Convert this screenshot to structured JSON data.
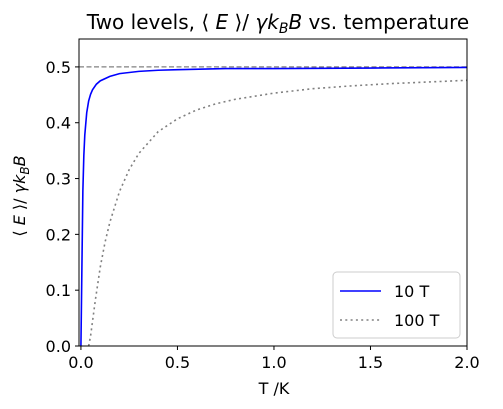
{
  "chart_data": {
    "type": "line",
    "title": "Two levels, ⟨ E ⟩/ γk_B B vs. temperature",
    "xlabel": "T /K",
    "ylabel": "⟨ E ⟩/ γk_B B",
    "xlim": [
      -0.01,
      2.0
    ],
    "ylim": [
      0.0,
      0.55
    ],
    "x_ticks": [
      0.0,
      0.5,
      1.0,
      1.5,
      2.0
    ],
    "x_tick_labels": [
      "0.0",
      "0.5",
      "1.0",
      "1.5",
      "2.0"
    ],
    "y_ticks": [
      0.0,
      0.1,
      0.2,
      0.3,
      0.4,
      0.5
    ],
    "y_tick_labels": [
      "0.0",
      "0.1",
      "0.2",
      "0.3",
      "0.4",
      "0.5"
    ],
    "grid": false,
    "legend_position": "bottom-right",
    "reference_line": {
      "y": 0.5,
      "style": "dashed",
      "color": "#808080"
    },
    "series": [
      {
        "name": "10 T",
        "color": "#0000ff",
        "style": "solid",
        "x": [
          0.0,
          0.005,
          0.01,
          0.015,
          0.02,
          0.03,
          0.04,
          0.05,
          0.06,
          0.08,
          0.1,
          0.15,
          0.2,
          0.3,
          0.4,
          0.5,
          0.75,
          1.0,
          1.5,
          2.0
        ],
        "y": [
          0.0,
          0.14,
          0.277,
          0.341,
          0.378,
          0.418,
          0.439,
          0.451,
          0.459,
          0.469,
          0.475,
          0.483,
          0.488,
          0.492,
          0.494,
          0.495,
          0.497,
          0.497,
          0.498,
          0.499
        ]
      },
      {
        "name": "100 T",
        "color": "#808080",
        "style": "dotted",
        "x": [
          0.04,
          0.05,
          0.075,
          0.1,
          0.125,
          0.15,
          0.2,
          0.25,
          0.3,
          0.4,
          0.5,
          0.6,
          0.7,
          0.8,
          1.0,
          1.2,
          1.4,
          1.6,
          1.8,
          2.0
        ],
        "y": [
          0.0,
          0.018,
          0.083,
          0.141,
          0.186,
          0.222,
          0.277,
          0.316,
          0.345,
          0.384,
          0.407,
          0.423,
          0.434,
          0.442,
          0.453,
          0.461,
          0.466,
          0.47,
          0.473,
          0.476
        ]
      }
    ]
  }
}
